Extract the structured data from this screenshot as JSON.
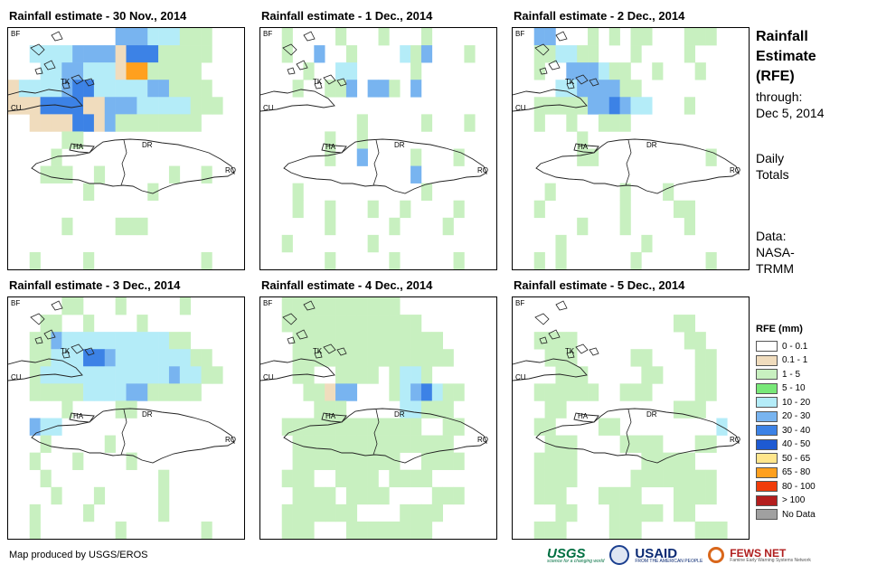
{
  "panels": [
    {
      "title": "Rainfall estimate - 30 Nov., 2014"
    },
    {
      "title": "Rainfall estimate - 1 Dec., 2014"
    },
    {
      "title": "Rainfall estimate - 2 Dec., 2014"
    },
    {
      "title": "Rainfall estimate - 3 Dec., 2014"
    },
    {
      "title": "Rainfall estimate - 4 Dec., 2014"
    },
    {
      "title": "Rainfall estimate - 5 Dec., 2014"
    }
  ],
  "map_labels": {
    "bf": "BF",
    "tk": "TK",
    "cu": "CU",
    "ha": "HA",
    "dr": "DR",
    "rq": "RQ"
  },
  "side": {
    "heading_line1": "Rainfall",
    "heading_line2": "Estimate",
    "heading_line3": "(RFE)",
    "through_label": "through:",
    "through_date": "Dec 5, 2014",
    "daily_line1": "Daily",
    "daily_line2": "Totals",
    "data_line1": "Data:",
    "data_line2": "NASA-",
    "data_line3": "TRMM"
  },
  "legend": {
    "title": "RFE (mm)",
    "items": [
      {
        "label": "0 - 0.1",
        "color": "#ffffff"
      },
      {
        "label": "0.1 - 1",
        "color": "#f0dcbd"
      },
      {
        "label": "1 - 5",
        "color": "#c8f0c0"
      },
      {
        "label": "5 - 10",
        "color": "#78e878"
      },
      {
        "label": "10 - 20",
        "color": "#b4ecf8"
      },
      {
        "label": "20 - 30",
        "color": "#78b4f0"
      },
      {
        "label": "30 - 40",
        "color": "#3c82e6"
      },
      {
        "label": "40 - 50",
        "color": "#1e5ad2"
      },
      {
        "label": "50 - 65",
        "color": "#ffe68c"
      },
      {
        "label": "65 - 80",
        "color": "#ffa01e"
      },
      {
        "label": "80 - 100",
        "color": "#f03c0a"
      },
      {
        "label": "> 100",
        "color": "#b41e1e"
      },
      {
        "label": "No Data",
        "color": "#a0a0a0"
      }
    ]
  },
  "footer": {
    "credit": "Map produced by USGS/EROS",
    "usgs": "USGS",
    "usgs_tagline": "science for a changing world",
    "usaid": "USAID",
    "usaid_tagline": "FROM THE AMERICAN PEOPLE",
    "fews": "FEWS NET",
    "fews_tagline": "Famine Early Warning Systems Network"
  },
  "rain_grid": [
    [
      "..........BBBCCCAAA...",
      "..CCCCBBBBMDDDAAAAA...",
      "...CCBBCCCMLLAAAAA....",
      "MCCCCBDDCCCCCBBAAAA...",
      "MMMDDDDMMBBBCCCCCAAA..",
      "..MMMMDDMBAAAAAAAA....",
      ".....AA...............",
      "....A.................",
      "...AAA..A......A..A...",
      ".......A.....A........",
      "......................",
      ".....A....AAA.........",
      "......................",
      "..A....A..........A..."
    ],
    [
      "..A....A...A...A......",
      "..A..B..A....CAB...A..",
      "....A..CC.....A.......",
      "...A..AAB.BBA.B.......",
      "......................",
      ".........A.....A...A..",
      "......A..A............",
      "......A..B....A...A...",
      "..............B.......",
      "...A...........A......",
      "...A..A...A..A....A...",
      "......A.....A....A....",
      "..A.......A...........",
      "......A.....A.....A..."
    ],
    [
      "..BB...A.A.AA...AAA...",
      "..AACCAA...A....A.....",
      "..A..BBBCAA..A...A....",
      "....CCBBBBAA..........",
      "..AAAAABBDBCC...A.....",
      "..A..A..AAA...........",
      "......A...............",
      "......AA..........A...",
      "......................",
      "...A......A...A.......",
      "..A.......A....AA.....",
      "......A...A.....A.....",
      "....A.......A.........",
      "..A.A......A......A..."
    ],
    [
      ".....AA...A.....A.....",
      "...AA..A....A.........",
      "..AABCCCCCCCCCCAA.....",
      "..AACCCDDBCCCCCCCAA...",
      "..ACCCCCCCCCCCCBCCAA..",
      "..AAAAACCCCBBAAAAA....",
      ".....A....AA..........",
      "..BCC.................",
      "...A.....A............",
      "..A...A....A..........",
      "...A..........A.......",
      "....A...A.....A.......",
      "..A....A......A.......",
      "..A.......A.......A..."
    ],
    [
      "..AAAAAAAAAAA.........",
      "..AAAAAAAAAAAAA.......",
      "...AAAAAAAAAAAAAA.....",
      "...AAAAAAAAAAAAAAA....",
      "...AA..AAAA.ACCA......",
      "....AAMBB...ACBDCAA...",
      ".....AAA.....CCAAA....",
      "..AAAAAAAAAAAAA..AA...",
      "...AAAAAAAAAAAAAAA....",
      "...AAAAAAAAAA..AAAA...",
      "..AAA..AAAA.AAAA......",
      "...AAAA.AAAA....AAA...",
      "..AAAAAAA....AAAA.....",
      "..AAA...AAAAAAAA......"
    ],
    [
      "......................",
      "...............AA.....",
      "..AAAA..........AA....",
      "...AAA.....AA....AA...",
      "....AAA.....AA...AA...",
      "..AAAAAA..AAA....AA...",
      "...AA..........AAA....",
      "..AA....AA.........C..",
      "...AAA....AAAA...AA...",
      "..AAAA......AAAAA.....",
      "..AAAA.....AAAAAAAA...",
      "..AAA...AAAA...AAAA...",
      "....AA...AAAAA.AA.....",
      "..AAA....AAA.....AAA.."
    ]
  ]
}
